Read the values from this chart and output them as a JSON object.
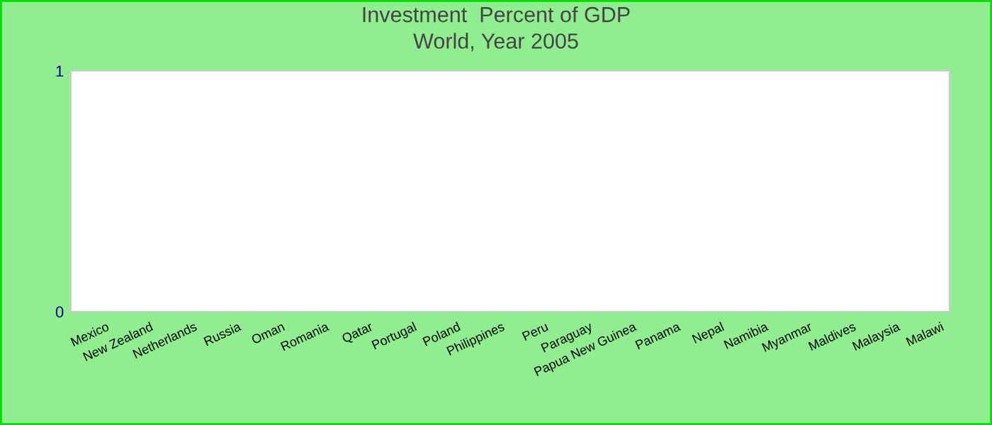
{
  "chart_data": {
    "type": "bar",
    "title": "Investment  Percent of GDP\nWorld, Year 2005",
    "categories": [
      "Mexico",
      "New Zealand",
      "Netherlands",
      "Russia",
      "Oman",
      "Romania",
      "Qatar",
      "Portugal",
      "Poland",
      "Philippines",
      "Peru",
      "Paraguay",
      "Papua New Guinea",
      "Panama",
      "Nepal",
      "Namibia",
      "Myanmar",
      "Maldives",
      "Malaysia",
      "Malawi"
    ],
    "values": [
      null,
      null,
      null,
      null,
      null,
      null,
      null,
      null,
      null,
      null,
      null,
      null,
      null,
      null,
      null,
      null,
      null,
      null,
      null,
      null
    ],
    "ylim": [
      0,
      1
    ],
    "yticks": [
      0,
      1
    ]
  }
}
